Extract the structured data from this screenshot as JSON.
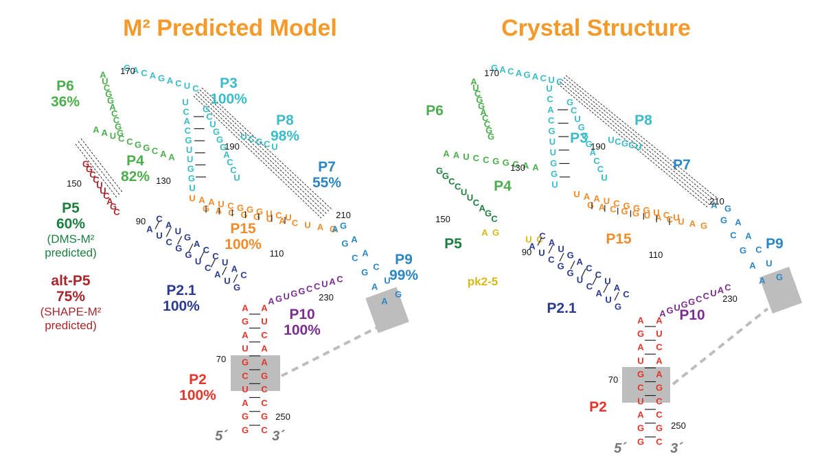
{
  "titles": {
    "left": "M² Predicted Model",
    "right": "Crystal Structure"
  },
  "colors": {
    "title": "#f39a2b",
    "P2": "#e5352b",
    "P2_1": "#2a3a8f",
    "P3": "#3bbcc8",
    "P4": "#4cae4c",
    "P5": "#1c7e3f",
    "altP5": "#a7272c",
    "P6": "#4cae4c",
    "P7": "#2b86c4",
    "P8": "#3bbcc8",
    "P9": "#2b86c4",
    "P10": "#7a2e8e",
    "P15": "#f08c2a",
    "pk": "#d6b91a",
    "box": "#bdbdbd"
  },
  "left_labels": {
    "P6": "P6",
    "P6_pct": "36%",
    "P3": "P3",
    "P3_pct": "100%",
    "P8": "P8",
    "P8_pct": "98%",
    "P7": "P7",
    "P7_pct": "55%",
    "P4": "P4",
    "P4_pct": "82%",
    "P5": "P5",
    "P5_pct": "60%",
    "P5_note1": "(DMS-M²",
    "P5_note2": "predicted)",
    "altP5": "alt-P5",
    "altP5_pct": "75%",
    "altP5_note1": "(SHAPE-M²",
    "altP5_note2": "predicted)",
    "P15": "P15",
    "P15_pct": "100%",
    "P9": "P9",
    "P9_pct": "99%",
    "P2_1": "P2.1",
    "P2_1_pct": "100%",
    "P10": "P10",
    "P10_pct": "100%",
    "P2": "P2",
    "P2_pct": "100%"
  },
  "right_labels": {
    "P6": "P6",
    "P3": "P3",
    "P8": "P8",
    "P7": "P7",
    "P4": "P4",
    "P5": "P5",
    "P15": "P15",
    "P9": "P9",
    "pk": "pk2-5",
    "P2_1": "P2.1",
    "P10": "P10",
    "P2": "P2"
  },
  "numbers": {
    "n70": "70",
    "n90": "90",
    "n110": "110",
    "n130": "130",
    "n150": "150",
    "n170": "170",
    "n190": "190",
    "n210": "210",
    "n230": "230",
    "n250": "250"
  },
  "ends": {
    "five": "5´",
    "three": "3´"
  },
  "seq": {
    "p2_5": "GGAUCGUAGA",
    "p2_3": "CGCCGAACUA",
    "p21_5": "AUCGGUCAUG",
    "p21_3": "CAUGACCUAC",
    "p15_5": "UAAUCGGGUCU",
    "p15_3": "GACGGUACUAG",
    "p10": "AGUGGCCUAC",
    "p9_5": "AGCGAA",
    "p9_3": "GAACUG",
    "p3_5": "UCACGUUGGU",
    "p3_3": "GCUGGGACCU",
    "p8": "UCGCU",
    "p4": "AAUCCGGCAA",
    "p6": "AUCGGACCGG",
    "p5": "GGCCUUCAGC",
    "loop": "GACAGACUC",
    "pk": "AG",
    "pk2": "UC"
  }
}
